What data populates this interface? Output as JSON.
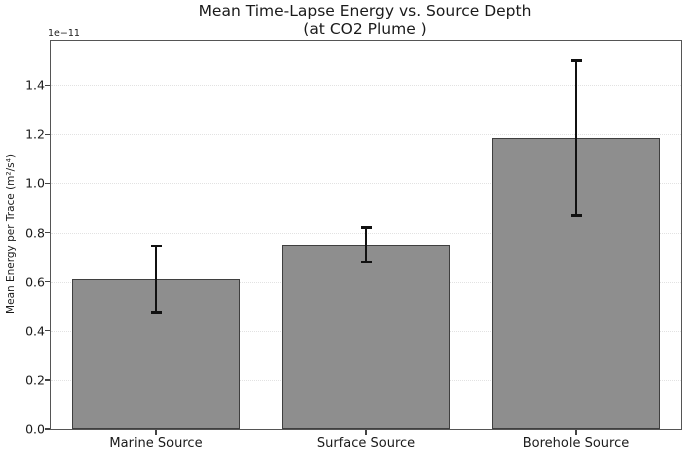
{
  "chart_data": {
    "type": "bar",
    "title": "Mean Time-Lapse Energy vs. Source Depth",
    "subtitle": "(at CO2 Plume )",
    "ylabel": "Mean Energy per Trace (m²/s⁴)",
    "xlabel": "",
    "y_scale_offset_label": "1e−11",
    "unit_scale": "1e-11",
    "categories": [
      "Marine Source",
      "Surface Source",
      "Borehole Source"
    ],
    "values": [
      0.61,
      0.75,
      1.185
    ],
    "errors": [
      0.135,
      0.07,
      0.315
    ],
    "yticks": [
      0.0,
      0.2,
      0.4,
      0.6,
      0.8,
      1.0,
      1.2,
      1.4
    ],
    "ylim": [
      0,
      1.58
    ],
    "grid": "horizontal-dotted",
    "legend_position": "none",
    "bar_color": "#8e8e8e",
    "bar_edge_color": "#3f3f3f",
    "error_color": "#111111",
    "grid_color": "#e2e2e2",
    "background_color": "#ffffff",
    "bar_width_fraction": 0.8
  }
}
